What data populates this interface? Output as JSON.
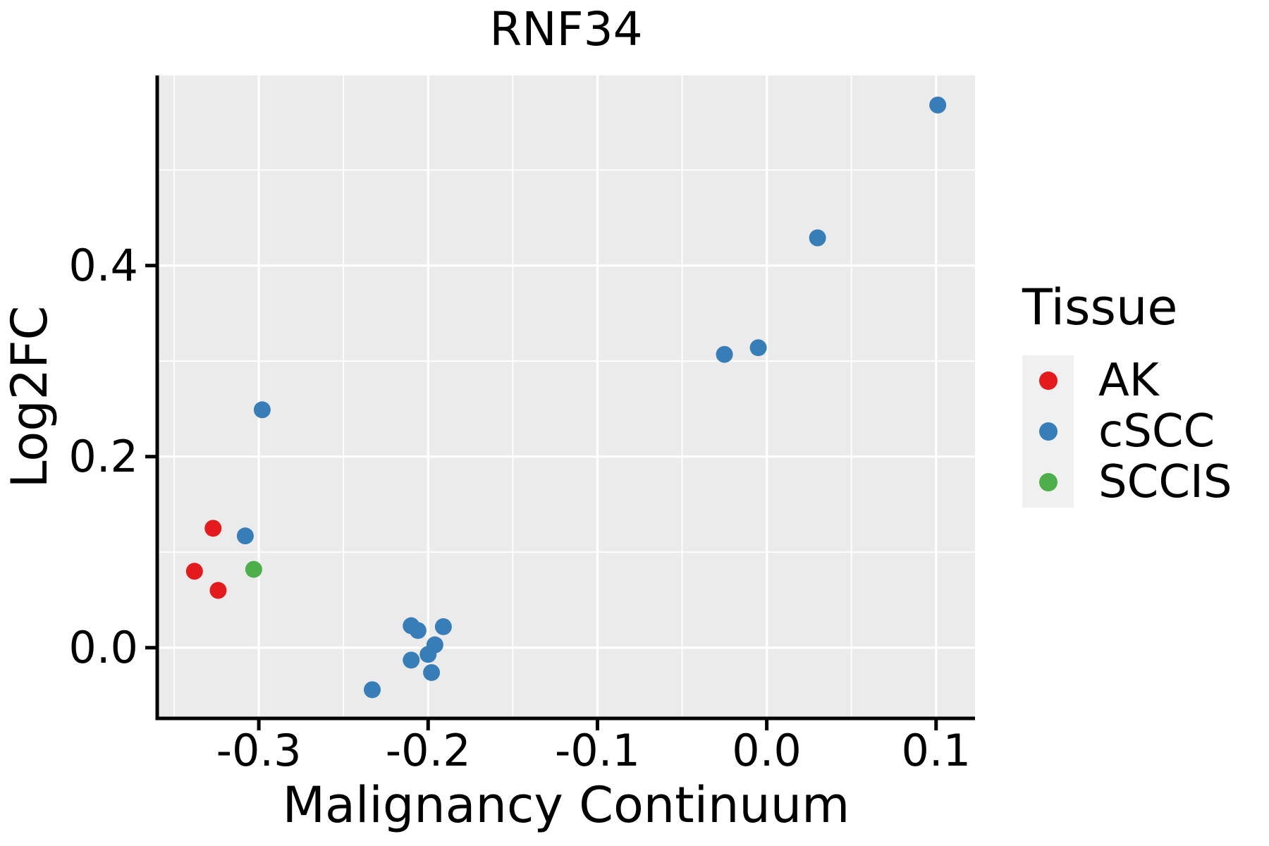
{
  "chart_data": {
    "type": "scatter",
    "title": "RNF34",
    "xlabel": "Malignancy Continuum",
    "ylabel": "Log2FC",
    "legend_title": "Tissue",
    "legend_position": "right",
    "grid": "on",
    "xlim": [
      -0.36,
      0.123
    ],
    "ylim": [
      -0.074,
      0.599
    ],
    "x_ticks": {
      "values": [
        -0.3,
        -0.2,
        -0.1,
        0.0,
        0.1
      ],
      "labels": [
        "-0.3",
        "-0.2",
        "-0.1",
        "0.0",
        "0.1"
      ]
    },
    "y_ticks": {
      "values": [
        0.0,
        0.2,
        0.4
      ],
      "labels": [
        "0.0",
        "0.2",
        "0.4"
      ]
    },
    "x_minor": [
      -0.35,
      -0.25,
      -0.15,
      -0.05,
      0.05
    ],
    "y_minor": [
      0.1,
      0.3,
      0.5
    ],
    "series": [
      {
        "name": "AK",
        "color": "#E41A1C",
        "points": [
          [
            -0.327,
            0.125
          ],
          [
            -0.338,
            0.08
          ],
          [
            -0.324,
            0.06
          ]
        ]
      },
      {
        "name": "cSCC",
        "color": "#377EB8",
        "points": [
          [
            -0.308,
            0.117
          ],
          [
            -0.298,
            0.249
          ],
          [
            -0.233,
            -0.044
          ],
          [
            -0.21,
            0.023
          ],
          [
            -0.206,
            0.018
          ],
          [
            -0.191,
            0.022
          ],
          [
            -0.196,
            0.003
          ],
          [
            -0.2,
            -0.007
          ],
          [
            -0.21,
            -0.013
          ],
          [
            -0.198,
            -0.026
          ],
          [
            -0.025,
            0.307
          ],
          [
            -0.005,
            0.314
          ],
          [
            0.03,
            0.429
          ],
          [
            0.101,
            0.568
          ]
        ]
      },
      {
        "name": "SCCIS",
        "color": "#4DAF4A",
        "points": [
          [
            -0.303,
            0.082
          ]
        ]
      }
    ]
  },
  "colors": {
    "panel_bg": "#EBEBEB",
    "grid": "#FFFFFF",
    "spine": "#000000",
    "tick": "#000000",
    "text": "#000000",
    "legend_key_bg": "#F0F0F0",
    "page_bg": "#FFFFFF"
  }
}
